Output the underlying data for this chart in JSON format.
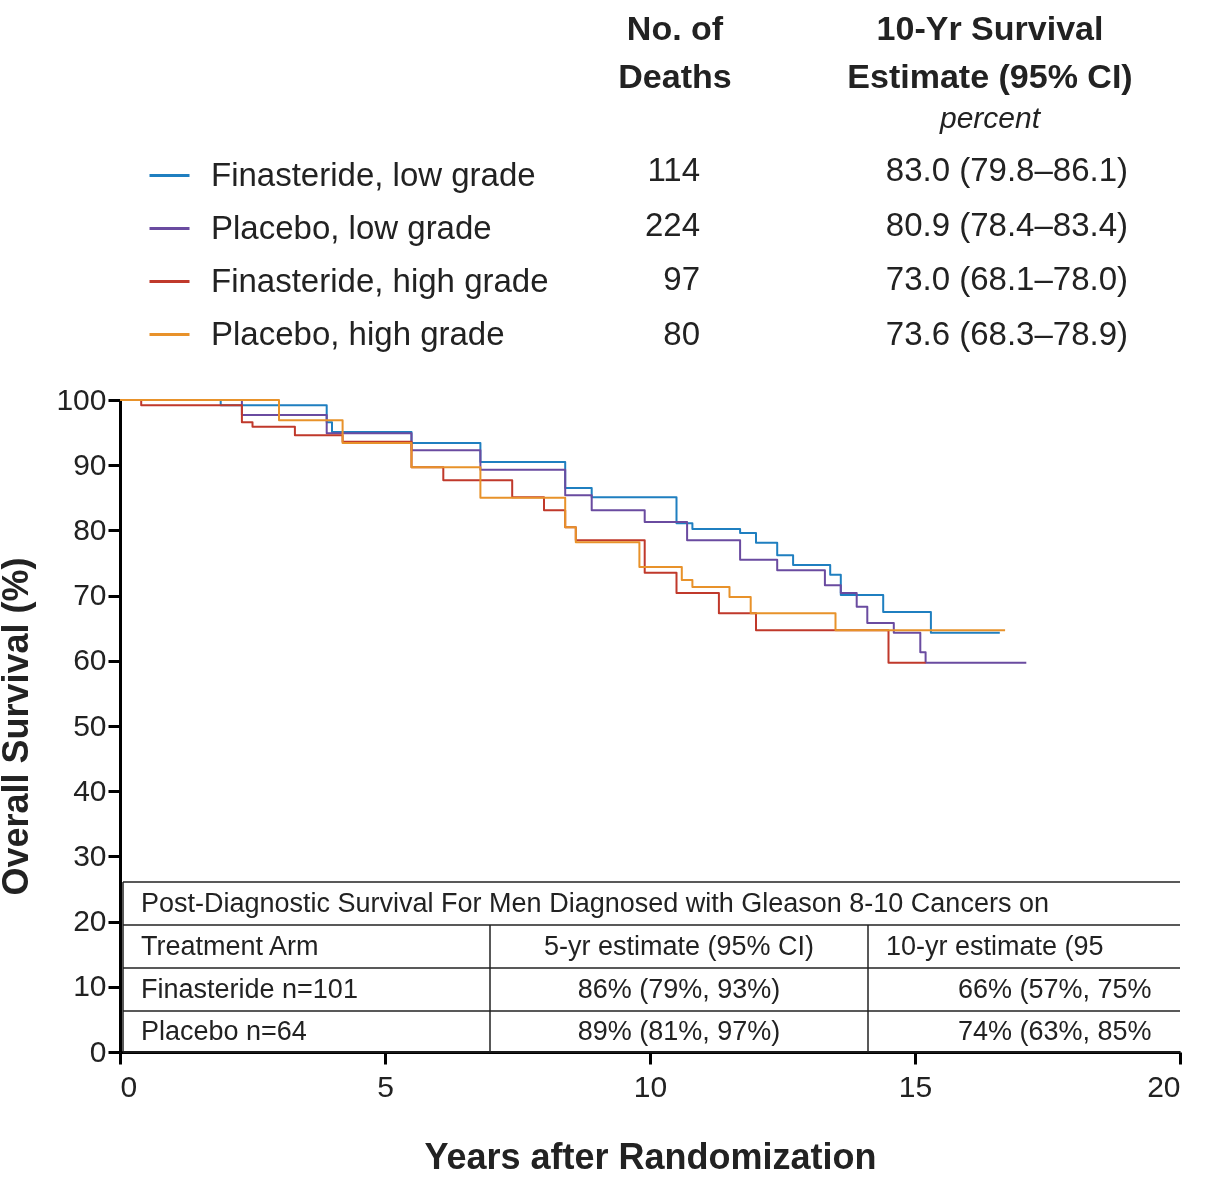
{
  "chart_data": {
    "type": "step",
    "xlabel": "Years after Randomization",
    "ylabel": "Overall Survival (%)",
    "xlim": [
      0,
      20
    ],
    "xticks": [
      0,
      5,
      10,
      15,
      20
    ],
    "ylim": [
      0,
      100
    ],
    "yticks": [
      0,
      10,
      20,
      30,
      40,
      50,
      60,
      70,
      80,
      90,
      100
    ],
    "grid": false,
    "legend": "top",
    "series": [
      {
        "name": "Finasteride, low grade",
        "color": "#1f7fc0",
        "x": [
          0,
          1.9,
          3.9,
          4.0,
          5.5,
          6.8,
          8.4,
          8.9,
          10.5,
          10.8,
          11.7,
          12.0,
          12.4,
          12.7,
          13.4,
          13.6,
          14.4,
          15.3,
          16.6
        ],
        "values": [
          100,
          99.2,
          96.6,
          95.1,
          93.4,
          90.5,
          86.5,
          85.1,
          81.1,
          80.2,
          79.6,
          78.1,
          76.2,
          74.7,
          73.2,
          70.1,
          67.5,
          64.3,
          64.3
        ]
      },
      {
        "name": "Placebo, low grade",
        "color": "#6a4ba0",
        "x": [
          0,
          2.3,
          3.9,
          5.5,
          6.8,
          8.4,
          8.9,
          9.9,
          10.7,
          11.7,
          12.4,
          13.3,
          13.6,
          13.9,
          14.1,
          14.6,
          15.1,
          15.2,
          17.1
        ],
        "values": [
          100,
          97.7,
          94.9,
          92.3,
          89.3,
          85.4,
          83.1,
          81.3,
          78.5,
          75.5,
          73.9,
          71.6,
          70.4,
          68.3,
          65.8,
          64.3,
          61.3,
          59.7,
          59.7
        ]
      },
      {
        "name": "Finasteride, high grade",
        "color": "#c0392b",
        "x": [
          0,
          0.4,
          2.3,
          2.5,
          3.3,
          4.2,
          5.5,
          6.1,
          7.4,
          8.0,
          8.4,
          8.6,
          9.9,
          10.5,
          11.3,
          12.0,
          14.5,
          15.2
        ],
        "values": [
          100,
          99.2,
          96.6,
          95.9,
          94.6,
          93.6,
          89.7,
          87.7,
          85.1,
          83.1,
          80.5,
          78.5,
          73.5,
          70.4,
          67.3,
          64.7,
          59.7,
          59.7
        ]
      },
      {
        "name": "Placebo, high grade",
        "color": "#e8922a",
        "x": [
          0,
          3.0,
          4.2,
          5.5,
          6.8,
          8.4,
          8.6,
          9.8,
          10.6,
          10.8,
          11.5,
          11.9,
          13.5,
          16.7
        ],
        "values": [
          100,
          96.9,
          93.4,
          89.7,
          85.0,
          80.5,
          78.2,
          74.4,
          72.4,
          71.3,
          69.8,
          67.3,
          64.7,
          64.7
        ]
      }
    ],
    "annotations": [
      "No. of",
      "Deaths",
      "10-Yr Survival",
      "Estimate (95% CI)",
      "percent",
      "114",
      "224",
      "97",
      "80",
      "83.0 (79.8–86.1)",
      "80.9 (78.4–83.4)",
      "73.0 (68.1–78.0)",
      "73.6 (68.3–78.9)",
      "Post-Diagnostic Survival For Men Diagnosed with Gleason 8-10 Cancers on",
      "Treatment Arm",
      "5-yr estimate (95% CI)",
      "10-yr estimate (95",
      "Finasteride n=101",
      "86% (79%, 93%)",
      "66% (57%, 75%",
      "Placebo n=64",
      "89% (81%, 97%)",
      "74% (63%, 85%"
    ]
  }
}
